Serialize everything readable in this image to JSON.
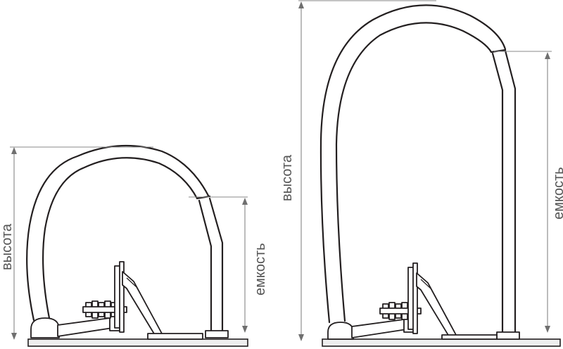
{
  "diagram": {
    "small_binder": {
      "height_label": "высота",
      "capacity_label": "емкость"
    },
    "large_binder": {
      "height_label": "высота",
      "capacity_label": "емкость"
    },
    "colors": {
      "outline": "#231f20",
      "dimension": "#7a7a7a",
      "label": "#555555"
    }
  }
}
